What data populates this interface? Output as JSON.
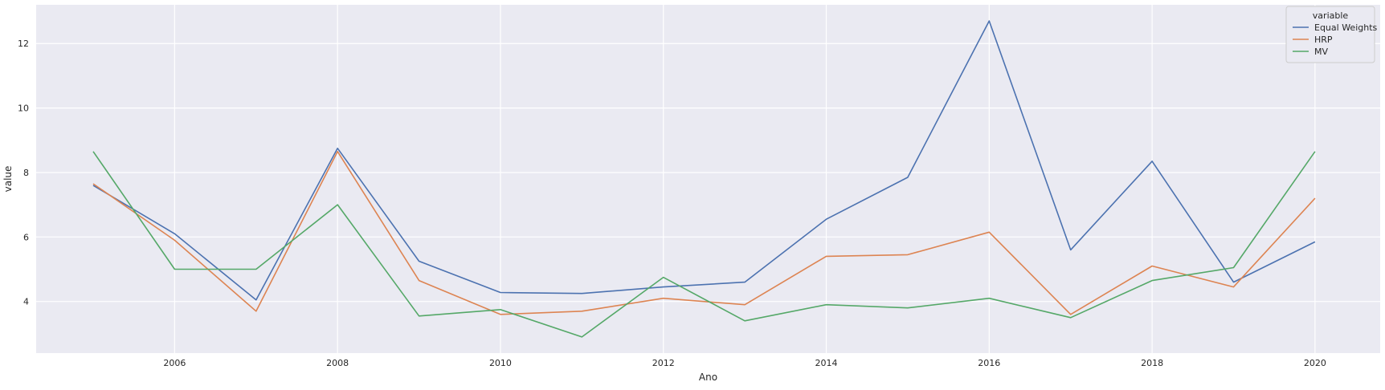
{
  "chart_data": {
    "type": "line",
    "title": "",
    "xlabel": "Ano",
    "ylabel": "value",
    "xlim": [
      2004.3,
      2020.8
    ],
    "ylim": [
      2.4,
      13.2
    ],
    "xticks": [
      2006,
      2008,
      2010,
      2012,
      2014,
      2016,
      2018,
      2020
    ],
    "yticks": [
      4,
      6,
      8,
      10,
      12
    ],
    "grid": true,
    "legend": {
      "title": "variable",
      "placement": "top-right"
    },
    "x": [
      2005,
      2006,
      2007,
      2008,
      2009,
      2010,
      2011,
      2012,
      2013,
      2014,
      2015,
      2016,
      2017,
      2018,
      2019,
      2020
    ],
    "series": [
      {
        "name": "Equal Weights",
        "color": "#4c72b0",
        "values": [
          7.6,
          6.1,
          4.05,
          8.75,
          5.25,
          4.28,
          4.25,
          4.45,
          4.6,
          6.55,
          7.85,
          12.7,
          5.6,
          8.35,
          4.6,
          5.85
        ]
      },
      {
        "name": "HRP",
        "color": "#dd8452",
        "values": [
          7.65,
          5.9,
          3.7,
          8.65,
          4.65,
          3.6,
          3.7,
          4.1,
          3.9,
          5.4,
          5.45,
          6.15,
          3.6,
          5.1,
          4.45,
          7.2
        ]
      },
      {
        "name": "MV",
        "color": "#55a868",
        "values": [
          8.65,
          5.0,
          5.0,
          7.0,
          3.55,
          3.75,
          2.9,
          4.75,
          3.4,
          3.9,
          3.8,
          4.1,
          3.5,
          4.65,
          5.05,
          8.65
        ]
      }
    ]
  }
}
